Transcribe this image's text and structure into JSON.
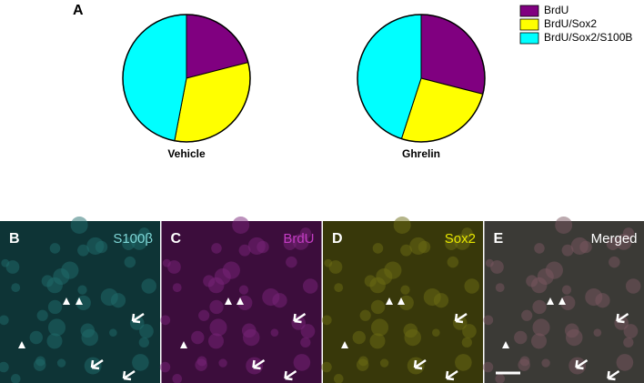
{
  "figure_label": "A",
  "chart_data": [
    {
      "type": "pie",
      "title": "Vehicle",
      "categories": [
        "BrdU",
        "BrdU/Sox2",
        "BrdU/Sox2/S100B"
      ],
      "values": [
        21,
        32,
        47
      ],
      "colors": [
        "#800080",
        "#ffff00",
        "#00ffff"
      ]
    },
    {
      "type": "pie",
      "title": "Ghrelin",
      "categories": [
        "BrdU",
        "BrdU/Sox2",
        "BrdU/Sox2/S100B"
      ],
      "values": [
        29,
        26,
        45
      ],
      "colors": [
        "#800080",
        "#ffff00",
        "#00ffff"
      ]
    }
  ],
  "panels": [
    {
      "letter": "B",
      "label": "S100β"
    },
    {
      "letter": "C",
      "label": "BrdU"
    },
    {
      "letter": "D",
      "label": "Sox2"
    },
    {
      "letter": "E",
      "label": "Merged"
    }
  ]
}
